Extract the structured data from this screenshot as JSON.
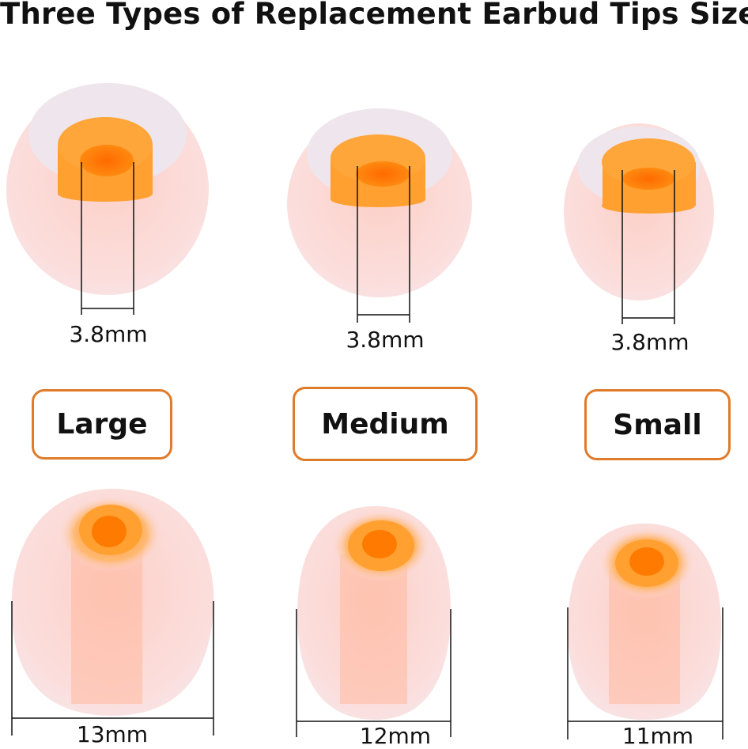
{
  "title": "Three Types of Replacement Earbud Tips Size",
  "colors": {
    "accent": "#e07b2a",
    "tip_body": "#fbd9d6",
    "core": "#ff9a2e"
  },
  "sizes": [
    {
      "label": "Large",
      "bore": "3.8mm",
      "diameter": "13mm"
    },
    {
      "label": "Medium",
      "bore": "3.8mm",
      "diameter": "12mm"
    },
    {
      "label": "Small",
      "bore": "3.8mm",
      "diameter": "11mm"
    }
  ]
}
